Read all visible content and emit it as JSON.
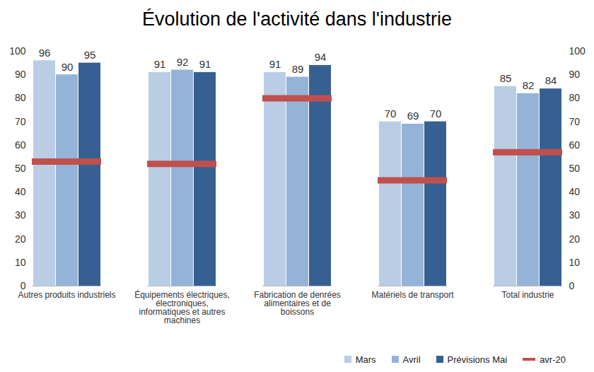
{
  "chart_data": {
    "type": "bar",
    "title": "Évolution de l'activité dans l'industrie",
    "categories": [
      "Autres produits industriels",
      "Équipements électriques, électroniques, informatiques et autres machines",
      "Fabrication de denrées alimentaires et de boissons",
      "Matériels de transport",
      "Total industrie"
    ],
    "series": [
      {
        "name": "Mars",
        "type": "bar",
        "color": "#b9cde5",
        "data_labels": true,
        "values": [
          96,
          91,
          91,
          70,
          85
        ]
      },
      {
        "name": "Avril",
        "type": "bar",
        "color": "#95b3d7",
        "data_labels": true,
        "values": [
          90,
          92,
          89,
          69,
          82
        ]
      },
      {
        "name": "Prévisions Mai",
        "type": "bar",
        "color": "#376092",
        "data_labels": true,
        "values": [
          95,
          91,
          94,
          70,
          84
        ]
      },
      {
        "name": "avr-20",
        "type": "tick",
        "color": "#c0504d",
        "data_labels": false,
        "values": [
          53,
          52,
          80,
          45,
          57
        ]
      }
    ],
    "ylim": [
      0,
      100
    ],
    "yticks": [
      0,
      10,
      20,
      30,
      40,
      50,
      60,
      70,
      80,
      90,
      100
    ],
    "y2lim": [
      0,
      100
    ],
    "y2ticks": [
      0,
      10,
      20,
      30,
      40,
      50,
      60,
      70,
      80,
      90,
      100
    ],
    "grid": false,
    "legend": "bottom-right"
  }
}
